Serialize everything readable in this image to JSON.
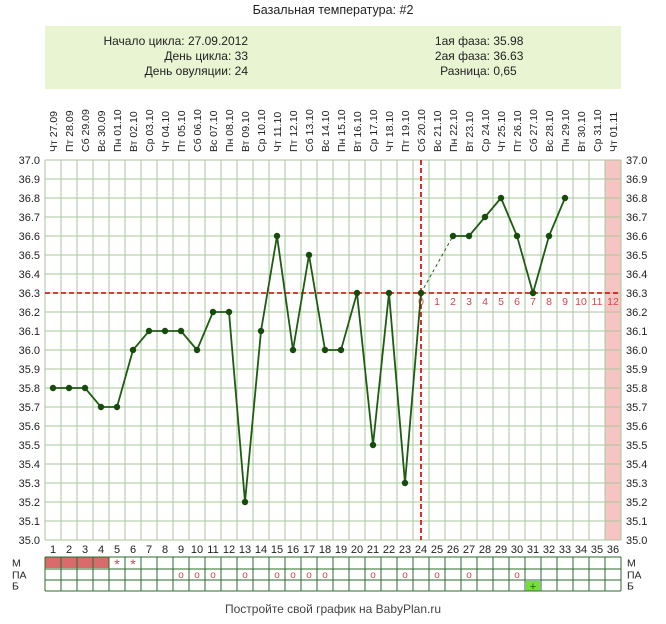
{
  "title": "Базальная температура: #2",
  "info": {
    "cycle_start_label": "Начало цикла:",
    "cycle_start": "27.09.2012",
    "cycle_day_label": "День цикла:",
    "cycle_day": "33",
    "ovulation_day_label": "День овуляции:",
    "ovulation_day": "24",
    "phase1_label": "1ая фаза:",
    "phase1": "35.98",
    "phase2_label": "2ая фаза:",
    "phase2": "36.63",
    "diff_label": "Разница:",
    "diff": "0,65"
  },
  "footer": "Постройте свой график на BabyPlan.ru",
  "chart_data": {
    "type": "line",
    "dates": [
      "Чт 27.09",
      "Пт 28.09",
      "Сб 29.09",
      "Вс 30.09",
      "Пн 01.10",
      "Вт 02.10",
      "Ср 03.10",
      "Чт 04.10",
      "Пт 05.10",
      "Сб 06.10",
      "Вс 07.10",
      "Пн 08.10",
      "Вт 09.10",
      "Ср 10.10",
      "Чт 11.10",
      "Пт 12.10",
      "Сб 13.10",
      "Вс 14.10",
      "Пн 15.10",
      "Вт 16.10",
      "Ср 17.10",
      "Чт 18.10",
      "Пт 19.10",
      "Сб 20.10",
      "Вс 21.10",
      "Пн 22.10",
      "Вт 23.10",
      "Ср 24.10",
      "Чт 25.10",
      "Пт 26.10",
      "Сб 27.10",
      "Вс 28.10",
      "Пн 29.10",
      "Вт 30.10",
      "Ср 31.10",
      "Чт 01.11"
    ],
    "days": [
      "1",
      "2",
      "3",
      "4",
      "5",
      "6",
      "7",
      "8",
      "9",
      "10",
      "11",
      "12",
      "13",
      "14",
      "15",
      "16",
      "17",
      "18",
      "19",
      "20",
      "21",
      "22",
      "23",
      "24",
      "25",
      "26",
      "27",
      "28",
      "29",
      "30",
      "31",
      "32",
      "33",
      "34",
      "35",
      "36"
    ],
    "y_ticks": [
      "35.0",
      "35.1",
      "35.2",
      "35.3",
      "35.4",
      "35.5",
      "35.6",
      "35.7",
      "35.8",
      "35.9",
      "36.0",
      "36.1",
      "36.2",
      "36.3",
      "36.4",
      "36.5",
      "36.6",
      "36.7",
      "36.8",
      "36.9",
      "37.0"
    ],
    "ylim": [
      35.0,
      37.0
    ],
    "values": [
      35.8,
      35.8,
      35.8,
      35.7,
      35.7,
      36.0,
      36.1,
      36.1,
      36.1,
      36.0,
      36.2,
      36.2,
      35.2,
      36.1,
      36.6,
      36.0,
      36.5,
      36.0,
      36.0,
      36.3,
      35.5,
      36.3,
      35.3,
      36.3,
      null,
      36.6,
      36.6,
      36.7,
      36.8,
      36.6,
      36.3,
      36.6,
      36.8,
      null,
      null,
      null
    ],
    "coverline": 36.3,
    "ovulation_day": 24,
    "luteal_labels": [
      "0",
      "1",
      "2",
      "3",
      "4",
      "5",
      "6",
      "7",
      "8",
      "9",
      "10",
      "11",
      "12"
    ],
    "highlight_day": 36,
    "grid": true,
    "row_labels": [
      "М",
      "ПА",
      "Б"
    ],
    "menses_bar_days": [
      1,
      2,
      3,
      4
    ],
    "menses_star_days": [
      5,
      6
    ],
    "menses_star": "*",
    "intercourse_days": [
      9,
      10,
      11,
      13,
      15,
      16,
      17,
      18,
      21,
      23,
      25,
      27,
      30
    ],
    "intercourse_mark": "o",
    "test_days": [
      31
    ],
    "test_mark": "+",
    "colors": {
      "line": "#1e5c12",
      "marker": "#164b0c",
      "coverline": "#cc0000",
      "grid": "#a8c89a",
      "highlight": "#f7c4c4",
      "menses": "#d96b6b",
      "luteal": "#d04848",
      "test": "#77dd3a"
    }
  }
}
